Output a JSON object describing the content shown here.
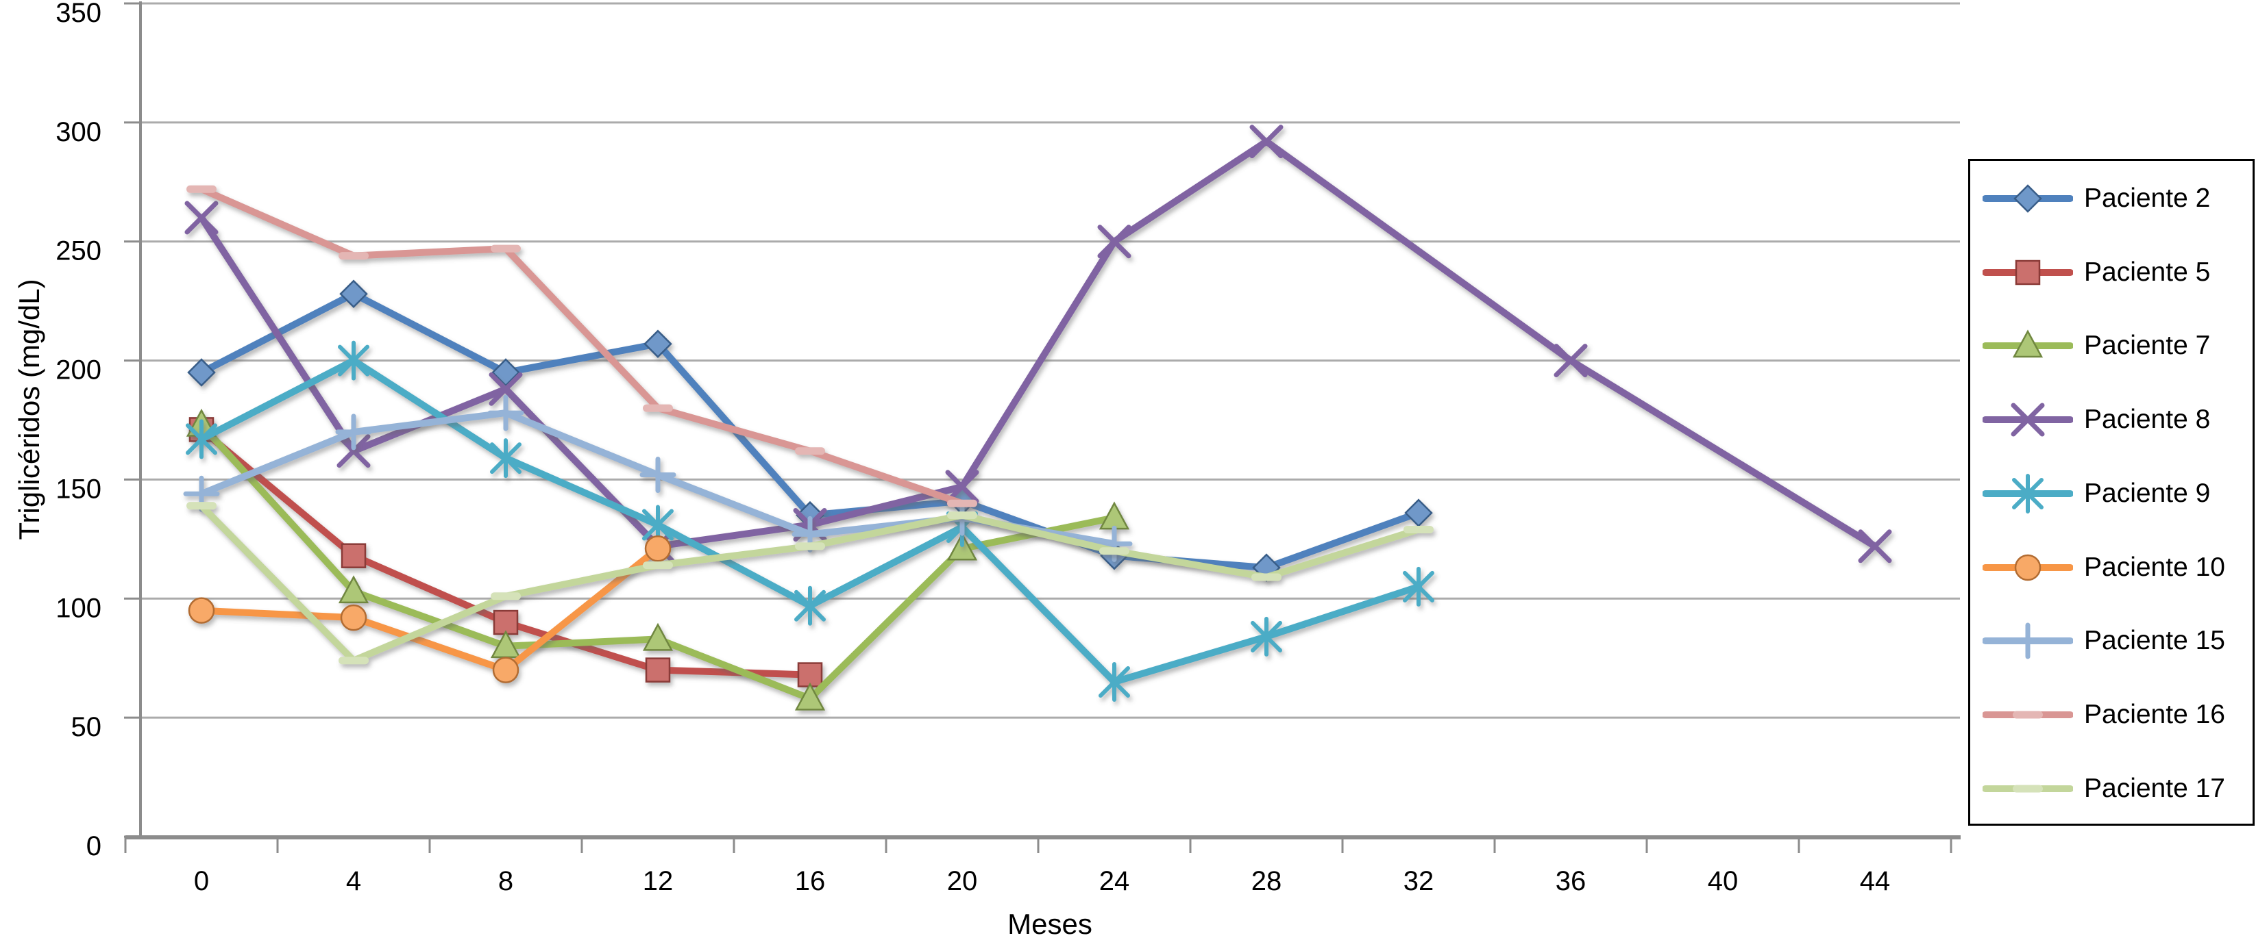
{
  "chart_data": {
    "type": "line",
    "xlabel": "Meses",
    "ylabel": "Triglicéridos (mg/dL)",
    "ylim": [
      0,
      350
    ],
    "ytick_step": 50,
    "x_categories": [
      0,
      4,
      8,
      12,
      16,
      20,
      24,
      28,
      32,
      36,
      40,
      44
    ],
    "grid": "horizontal-only",
    "legend_position": "right-box",
    "gridline_color": "#ABABAB",
    "axis_color": "#8C8C8C",
    "series": [
      {
        "name": "Paciente 2",
        "color": "#4F81BD",
        "marker": "diamond",
        "points": [
          [
            0,
            195
          ],
          [
            4,
            228
          ],
          [
            8,
            195
          ],
          [
            12,
            207
          ],
          [
            16,
            135
          ],
          [
            20,
            141
          ],
          [
            24,
            118
          ],
          [
            28,
            113
          ],
          [
            32,
            136
          ]
        ]
      },
      {
        "name": "Paciente 5",
        "color": "#C0504D",
        "marker": "square",
        "points": [
          [
            0,
            171
          ],
          [
            4,
            118
          ],
          [
            8,
            90
          ],
          [
            12,
            70
          ],
          [
            16,
            68
          ]
        ]
      },
      {
        "name": "Paciente 7",
        "color": "#9BBB59",
        "marker": "triangle",
        "points": [
          [
            0,
            173
          ],
          [
            4,
            103
          ],
          [
            8,
            80
          ],
          [
            12,
            83
          ],
          [
            16,
            58
          ],
          [
            20,
            121
          ],
          [
            24,
            134
          ]
        ]
      },
      {
        "name": "Paciente 8",
        "color": "#8064A2",
        "marker": "x",
        "points": [
          [
            0,
            260
          ],
          [
            4,
            162
          ],
          [
            8,
            188
          ],
          [
            12,
            122
          ],
          [
            16,
            131
          ],
          [
            20,
            147
          ],
          [
            24,
            250
          ],
          [
            28,
            292
          ],
          [
            36,
            200
          ],
          [
            44,
            122
          ]
        ]
      },
      {
        "name": "Paciente 9",
        "color": "#4BACC6",
        "marker": "star",
        "points": [
          [
            0,
            167
          ],
          [
            4,
            200
          ],
          [
            8,
            159
          ],
          [
            12,
            131
          ],
          [
            16,
            97
          ],
          [
            20,
            130
          ],
          [
            24,
            65
          ],
          [
            28,
            84
          ],
          [
            32,
            105
          ]
        ]
      },
      {
        "name": "Paciente 10",
        "color": "#F79646",
        "marker": "circle",
        "points": [
          [
            0,
            95
          ],
          [
            4,
            92
          ],
          [
            8,
            70
          ],
          [
            12,
            121
          ]
        ]
      },
      {
        "name": "Paciente 15",
        "color": "#95B3D7",
        "marker": "plus",
        "points": [
          [
            0,
            144
          ],
          [
            4,
            170
          ],
          [
            8,
            178
          ],
          [
            12,
            152
          ],
          [
            16,
            127
          ],
          [
            20,
            134
          ],
          [
            24,
            123
          ]
        ]
      },
      {
        "name": "Paciente 16",
        "color": "#D99694",
        "marker": "dash",
        "points": [
          [
            0,
            272
          ],
          [
            4,
            244
          ],
          [
            8,
            247
          ],
          [
            12,
            180
          ],
          [
            16,
            162
          ],
          [
            20,
            140
          ]
        ]
      },
      {
        "name": "Paciente 17",
        "color": "#C3D69B",
        "marker": "dash",
        "points": [
          [
            0,
            139
          ],
          [
            4,
            74
          ],
          [
            8,
            101
          ],
          [
            12,
            114
          ],
          [
            16,
            122
          ],
          [
            20,
            135
          ],
          [
            24,
            120
          ],
          [
            28,
            109
          ],
          [
            32,
            129
          ]
        ]
      }
    ]
  }
}
